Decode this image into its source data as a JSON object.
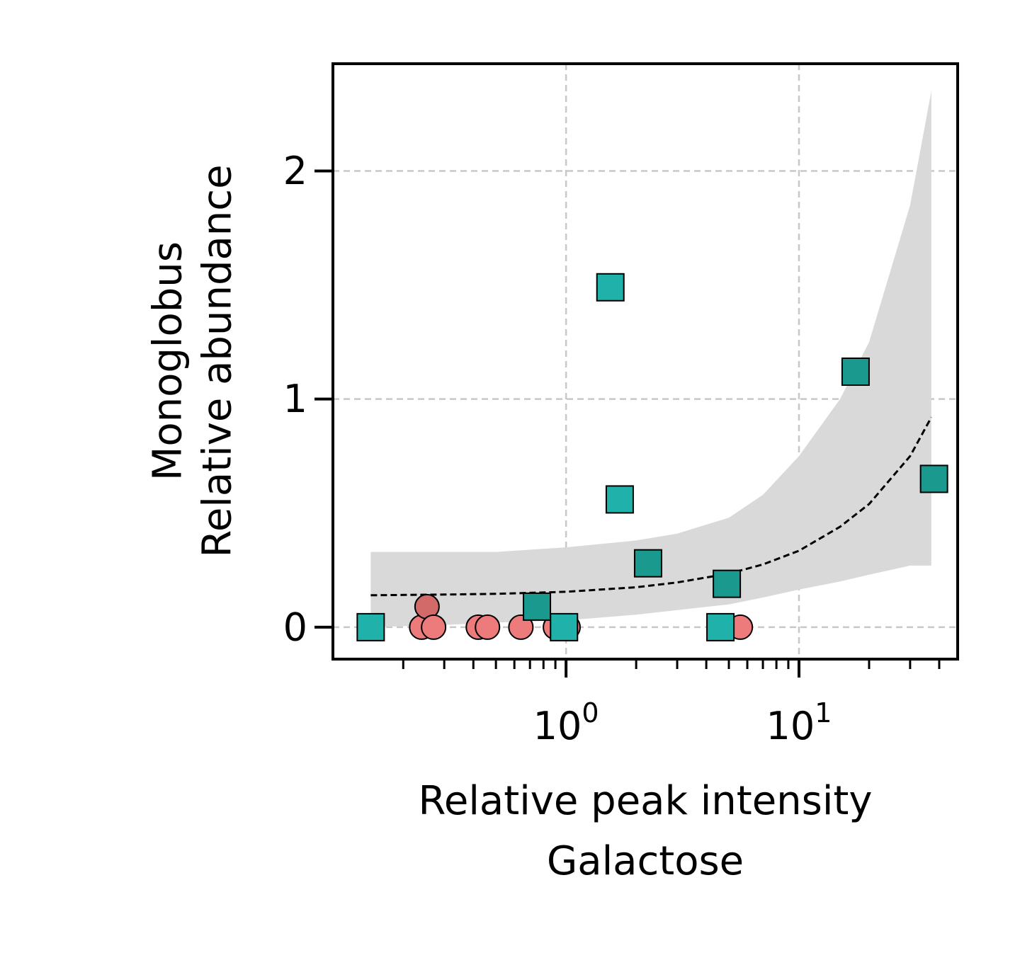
{
  "chart_data": {
    "type": "scatter",
    "title": "",
    "xlabel": [
      "Relative peak intensity",
      "Galactose"
    ],
    "ylabel": [
      "Monoglobus",
      "Relative abundance"
    ],
    "xscale": "log",
    "xlim": [
      0.0998,
      48
    ],
    "ylim": [
      -0.14,
      2.47
    ],
    "xticks": [
      {
        "value": 1,
        "base": "10",
        "exp": "0"
      },
      {
        "value": 10,
        "base": "10",
        "exp": "1"
      }
    ],
    "yticks": [
      {
        "value": 0,
        "label": "0"
      },
      {
        "value": 1,
        "label": "1"
      },
      {
        "value": 2,
        "label": "2"
      }
    ],
    "grid": true,
    "colors": {
      "circle": "#ed7b7b",
      "circle_dark": "#d26a6a",
      "square": "#20b2aa",
      "square_dark": "#1a9a8e",
      "band": "#d9d9d9",
      "fit": "#000000",
      "grid": "#c8c8c8"
    },
    "series": [
      {
        "marker": "circle",
        "points": [
          {
            "x": 0.24,
            "y": 0.0
          },
          {
            "x": 0.253,
            "y": 0.09,
            "shade": "dark"
          },
          {
            "x": 0.27,
            "y": 0.0
          },
          {
            "x": 0.42,
            "y": 0.0
          },
          {
            "x": 0.46,
            "y": 0.0
          },
          {
            "x": 0.64,
            "y": 0.0
          },
          {
            "x": 0.9,
            "y": 0.0
          },
          {
            "x": 1.02,
            "y": 0.0
          },
          {
            "x": 5.6,
            "y": 0.0
          }
        ]
      },
      {
        "marker": "square",
        "points": [
          {
            "x": 0.145,
            "y": 0.0
          },
          {
            "x": 0.75,
            "y": 0.09,
            "shade": "dark"
          },
          {
            "x": 0.98,
            "y": 0.0
          },
          {
            "x": 1.55,
            "y": 1.49
          },
          {
            "x": 1.7,
            "y": 0.56
          },
          {
            "x": 2.25,
            "y": 0.28,
            "shade": "dark"
          },
          {
            "x": 4.6,
            "y": 0.0
          },
          {
            "x": 4.9,
            "y": 0.19,
            "shade": "dark"
          },
          {
            "x": 17.5,
            "y": 1.12,
            "shade": "dark"
          },
          {
            "x": 38,
            "y": 0.65,
            "shade": "dark"
          }
        ]
      }
    ],
    "fit_line": {
      "style": "dashed",
      "x": [
        0.145,
        0.3,
        0.5,
        1,
        2,
        3,
        5,
        7,
        10,
        15,
        20,
        30,
        37
      ],
      "y": [
        0.14,
        0.143,
        0.146,
        0.155,
        0.175,
        0.196,
        0.235,
        0.275,
        0.335,
        0.44,
        0.54,
        0.75,
        0.92
      ]
    },
    "confidence_band": {
      "x": [
        0.145,
        0.3,
        0.5,
        1,
        2,
        3,
        5,
        7,
        10,
        15,
        20,
        30,
        37
      ],
      "lower": [
        0.0,
        0.01,
        0.02,
        0.03,
        0.055,
        0.075,
        0.1,
        0.13,
        0.165,
        0.2,
        0.23,
        0.27,
        0.27
      ],
      "upper": [
        0.33,
        0.33,
        0.33,
        0.35,
        0.38,
        0.41,
        0.48,
        0.58,
        0.75,
        1.0,
        1.25,
        1.85,
        2.35
      ]
    }
  }
}
